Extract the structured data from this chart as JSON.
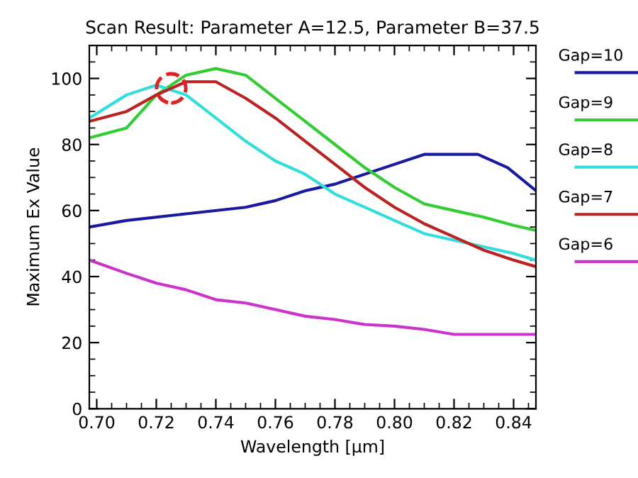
{
  "chart_data": {
    "type": "line",
    "title": "Scan Result: Parameter A=12.5, Parameter B=37.5",
    "xlabel": "Wavelength [μm]",
    "ylabel": "Maximum Ex Value",
    "xlim": [
      0.6975,
      0.8475
    ],
    "ylim": [
      0,
      110
    ],
    "xticks": [
      {
        "value": 0.7,
        "label": "0.70"
      },
      {
        "value": 0.72,
        "label": "0.72"
      },
      {
        "value": 0.74,
        "label": "0.74"
      },
      {
        "value": 0.76,
        "label": "0.76"
      },
      {
        "value": 0.78,
        "label": "0.78"
      },
      {
        "value": 0.8,
        "label": "0.80"
      },
      {
        "value": 0.82,
        "label": "0.82"
      },
      {
        "value": 0.84,
        "label": "0.84"
      }
    ],
    "yticks": [
      0,
      20,
      40,
      60,
      80,
      100
    ],
    "grid": false,
    "legend": "right",
    "marker": "none",
    "line_style": "solid",
    "series": [
      {
        "name": "Gap=10",
        "color": "#1a1aa0",
        "x": [
          0.6975,
          0.71,
          0.73,
          0.75,
          0.76,
          0.77,
          0.78,
          0.79,
          0.81,
          0.828,
          0.838,
          0.8475
        ],
        "values": [
          55,
          57,
          59,
          61,
          63,
          66,
          68,
          71,
          77,
          77,
          73,
          66
        ]
      },
      {
        "name": "Gap=9",
        "color": "#33cc33",
        "x": [
          0.6975,
          0.71,
          0.72,
          0.73,
          0.74,
          0.75,
          0.76,
          0.77,
          0.78,
          0.79,
          0.8,
          0.81,
          0.82,
          0.83,
          0.84,
          0.8475
        ],
        "values": [
          82,
          85,
          95,
          101,
          103,
          101,
          94,
          87,
          80,
          73,
          67,
          62,
          60,
          58,
          55.5,
          54
        ]
      },
      {
        "name": "Gap=8",
        "color": "#33dddd",
        "x": [
          0.6975,
          0.71,
          0.72,
          0.73,
          0.74,
          0.75,
          0.76,
          0.77,
          0.78,
          0.79,
          0.8,
          0.81,
          0.82,
          0.83,
          0.84,
          0.8475
        ],
        "values": [
          88,
          95,
          98,
          95,
          88,
          81,
          75,
          71,
          65,
          61,
          57,
          53,
          51,
          49,
          47,
          45
        ]
      },
      {
        "name": "Gap=7",
        "color": "#bb2222",
        "x": [
          0.6975,
          0.71,
          0.72,
          0.73,
          0.74,
          0.75,
          0.76,
          0.77,
          0.78,
          0.79,
          0.8,
          0.81,
          0.82,
          0.83,
          0.84,
          0.8475
        ],
        "values": [
          87,
          90,
          95,
          99,
          99,
          94,
          88,
          81,
          74,
          67,
          61,
          56,
          52,
          48,
          45,
          43
        ]
      },
      {
        "name": "Gap=6",
        "color": "#cc33cc",
        "x": [
          0.6975,
          0.71,
          0.72,
          0.73,
          0.74,
          0.75,
          0.76,
          0.77,
          0.78,
          0.79,
          0.8,
          0.81,
          0.82,
          0.8475
        ],
        "values": [
          45,
          41,
          38,
          36,
          33,
          32,
          30,
          28,
          27,
          25.5,
          25,
          24,
          22.5,
          22.5
        ]
      },
      {
        "type": "scatter",
        "color": "#dd2222",
        "marker": "circle",
        "line_style": "dashed",
        "x": [
          0.725
        ],
        "values": [
          97
        ]
      }
    ]
  }
}
